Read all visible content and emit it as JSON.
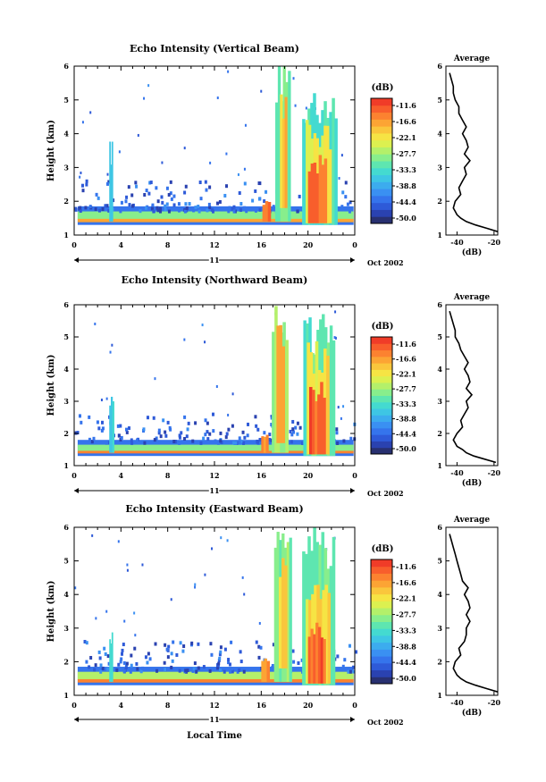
{
  "colors": {
    "colorbar": [
      "#283070",
      "#2a42b0",
      "#2e5ad8",
      "#3574ec",
      "#3a90f2",
      "#3cacee",
      "#3ec6e4",
      "#44dad0",
      "#5ee6b0",
      "#88ee8c",
      "#b4f06a",
      "#dcf050",
      "#f6e444",
      "#fac63c",
      "#fca434",
      "#fc8230",
      "#f85e2c",
      "#f03c28"
    ],
    "profile_line": "#000000"
  },
  "chart_data": [
    {
      "type": "heatmap",
      "title": "Echo Intensity (Vertical Beam)",
      "ylabel": "Height (km)",
      "xlabel": "",
      "x_ticks": [
        "0",
        "4",
        "8",
        "12",
        "16",
        "20",
        "0"
      ],
      "y_ticks": [
        "1",
        "2",
        "3",
        "4",
        "5",
        "6"
      ],
      "xlim": [
        0,
        24
      ],
      "ylim": [
        1,
        6
      ],
      "date_bar_label": "11",
      "date_suffix": "Oct 2002",
      "colorbar": {
        "unit": "(dB)",
        "labels": [
          "-11.6",
          "-16.6",
          "-22.1",
          "-27.7",
          "-33.3",
          "-38.8",
          "-44.4",
          "-50.0"
        ],
        "range": [
          -53,
          -9
        ]
      },
      "surface_layer": [
        {
          "h": [
            1.3,
            1.85
          ],
          "db": -44
        },
        {
          "h": [
            1.45,
            1.7
          ],
          "db": -30
        },
        {
          "h": [
            1.38,
            1.48
          ],
          "db": -18
        }
      ],
      "echo_events": [
        {
          "t": [
            3.0,
            3.3
          ],
          "h": [
            1.4,
            3.6
          ],
          "db": -38
        },
        {
          "t": [
            16.1,
            16.8
          ],
          "h": [
            1.4,
            2.0
          ],
          "db": -14
        },
        {
          "t": [
            17.2,
            18.5
          ],
          "h": [
            1.4,
            6.0
          ],
          "db": -30
        },
        {
          "t": [
            17.6,
            18.2
          ],
          "h": [
            1.8,
            5.2
          ],
          "db": -20
        },
        {
          "t": [
            19.5,
            22.5
          ],
          "h": [
            1.3,
            5.2
          ],
          "db": -34
        },
        {
          "t": [
            19.8,
            22.0
          ],
          "h": [
            1.35,
            4.2
          ],
          "db": -24
        },
        {
          "t": [
            20.0,
            21.6
          ],
          "h": [
            1.35,
            3.2
          ],
          "db": -14
        }
      ],
      "profile": {
        "title": "Average",
        "xlabel": "(dB)",
        "x_ticks": [
          "-40",
          "-20"
        ],
        "xlim": [
          -46,
          -18
        ],
        "y_ticks": [
          "1",
          "2",
          "3",
          "4",
          "5",
          "6"
        ],
        "height": [
          1.1,
          1.2,
          1.3,
          1.4,
          1.5,
          1.6,
          1.7,
          1.8,
          2.0,
          2.2,
          2.4,
          2.6,
          2.8,
          3.0,
          3.2,
          3.4,
          3.6,
          3.8,
          4.0,
          4.2,
          4.4,
          4.6,
          4.8,
          5.0,
          5.2,
          5.4,
          5.6,
          5.8
        ],
        "db": [
          -18,
          -24,
          -30,
          -35,
          -38,
          -40,
          -41,
          -42,
          -41,
          -38,
          -39,
          -37,
          -35,
          -36,
          -33,
          -36,
          -34,
          -35,
          -37,
          -35,
          -37,
          -39,
          -39,
          -41,
          -42,
          -42,
          -43,
          -44
        ]
      }
    },
    {
      "type": "heatmap",
      "title": "Echo Intensity (Northward Beam)",
      "ylabel": "Height (km)",
      "xlabel": "",
      "x_ticks": [
        "0",
        "4",
        "8",
        "12",
        "16",
        "20",
        "0"
      ],
      "y_ticks": [
        "1",
        "2",
        "3",
        "4",
        "5",
        "6"
      ],
      "xlim": [
        0,
        24
      ],
      "ylim": [
        1,
        6
      ],
      "date_bar_label": "11",
      "date_suffix": "Oct 2002",
      "colorbar": {
        "unit": "(dB)",
        "labels": [
          "-11.6",
          "-16.6",
          "-22.1",
          "-27.7",
          "-33.3",
          "-38.8",
          "-44.4",
          "-50.0"
        ],
        "range": [
          -53,
          -9
        ]
      },
      "surface_layer": [
        {
          "h": [
            1.3,
            1.8
          ],
          "db": -44
        },
        {
          "h": [
            1.45,
            1.65
          ],
          "db": -30
        },
        {
          "h": [
            1.38,
            1.46
          ],
          "db": -16
        }
      ],
      "echo_events": [
        {
          "t": [
            3.0,
            3.4
          ],
          "h": [
            1.4,
            3.2
          ],
          "db": -36
        },
        {
          "t": [
            16.0,
            16.6
          ],
          "h": [
            1.4,
            2.0
          ],
          "db": -16
        },
        {
          "t": [
            16.9,
            18.3
          ],
          "h": [
            1.4,
            6.0
          ],
          "db": -28
        },
        {
          "t": [
            17.3,
            18.0
          ],
          "h": [
            1.7,
            5.5
          ],
          "db": -18
        },
        {
          "t": [
            19.6,
            22.3
          ],
          "h": [
            1.3,
            5.4
          ],
          "db": -32
        },
        {
          "t": [
            19.9,
            21.8
          ],
          "h": [
            1.35,
            4.6
          ],
          "db": -22
        },
        {
          "t": [
            20.1,
            21.5
          ],
          "h": [
            1.35,
            3.4
          ],
          "db": -13
        }
      ],
      "profile": {
        "title": "Average",
        "xlabel": "(dB)",
        "x_ticks": [
          "-40",
          "-20"
        ],
        "xlim": [
          -46,
          -18
        ],
        "y_ticks": [
          "1",
          "2",
          "3",
          "4",
          "5",
          "6"
        ],
        "height": [
          1.1,
          1.2,
          1.3,
          1.4,
          1.5,
          1.6,
          1.7,
          1.8,
          2.0,
          2.2,
          2.4,
          2.6,
          2.8,
          3.0,
          3.2,
          3.4,
          3.6,
          3.8,
          4.0,
          4.2,
          4.4,
          4.6,
          4.8,
          5.0,
          5.2,
          5.4,
          5.6,
          5.8
        ],
        "db": [
          -19,
          -25,
          -31,
          -35,
          -37,
          -40,
          -41,
          -42,
          -40,
          -37,
          -38,
          -36,
          -34,
          -35,
          -32,
          -35,
          -33,
          -34,
          -36,
          -34,
          -36,
          -38,
          -39,
          -41,
          -41,
          -42,
          -43,
          -44
        ]
      }
    },
    {
      "type": "heatmap",
      "title": "Echo Intensity (Eastward Beam)",
      "ylabel": "Height (km)",
      "xlabel": "Local Time",
      "x_ticks": [
        "0",
        "4",
        "8",
        "12",
        "16",
        "20",
        "0"
      ],
      "y_ticks": [
        "1",
        "2",
        "3",
        "4",
        "5",
        "6"
      ],
      "xlim": [
        0,
        24
      ],
      "ylim": [
        1,
        6
      ],
      "date_bar_label": "11",
      "date_suffix": "Oct 2002",
      "colorbar": {
        "unit": "(dB)",
        "labels": [
          "-11.6",
          "-16.6",
          "-22.1",
          "-27.7",
          "-33.3",
          "-38.8",
          "-44.4",
          "-50.0"
        ],
        "range": [
          -53,
          -9
        ]
      },
      "surface_layer": [
        {
          "h": [
            1.3,
            1.85
          ],
          "db": -44
        },
        {
          "h": [
            1.45,
            1.7
          ],
          "db": -28
        },
        {
          "h": [
            1.38,
            1.48
          ],
          "db": -16
        }
      ],
      "echo_events": [
        {
          "t": [
            3.0,
            3.3
          ],
          "h": [
            1.4,
            2.8
          ],
          "db": -34
        },
        {
          "t": [
            16.0,
            16.7
          ],
          "h": [
            1.4,
            2.1
          ],
          "db": -16
        },
        {
          "t": [
            17.1,
            18.6
          ],
          "h": [
            1.4,
            6.0
          ],
          "db": -30
        },
        {
          "t": [
            17.5,
            18.2
          ],
          "h": [
            1.8,
            5.2
          ],
          "db": -20
        },
        {
          "t": [
            19.5,
            22.3
          ],
          "h": [
            1.3,
            5.8
          ],
          "db": -32
        },
        {
          "t": [
            19.8,
            21.9
          ],
          "h": [
            1.35,
            4.2
          ],
          "db": -22
        },
        {
          "t": [
            20.0,
            21.5
          ],
          "h": [
            1.35,
            3.0
          ],
          "db": -13
        }
      ],
      "profile": {
        "title": "Average",
        "xlabel": "(dB)",
        "x_ticks": [
          "-40",
          "-20"
        ],
        "xlim": [
          -46,
          -18
        ],
        "y_ticks": [
          "1",
          "2",
          "3",
          "4",
          "5",
          "6"
        ],
        "height": [
          1.1,
          1.2,
          1.3,
          1.4,
          1.5,
          1.6,
          1.7,
          1.8,
          2.0,
          2.2,
          2.4,
          2.6,
          2.8,
          3.0,
          3.2,
          3.4,
          3.6,
          3.8,
          4.0,
          4.2,
          4.4,
          4.6,
          4.8,
          5.0,
          5.2,
          5.4,
          5.6,
          5.8
        ],
        "db": [
          -18,
          -24,
          -30,
          -35,
          -38,
          -40,
          -41,
          -42,
          -41,
          -38,
          -39,
          -36,
          -35,
          -35,
          -33,
          -35,
          -33,
          -34,
          -36,
          -34,
          -37,
          -38,
          -39,
          -40,
          -41,
          -42,
          -43,
          -44
        ]
      }
    }
  ]
}
